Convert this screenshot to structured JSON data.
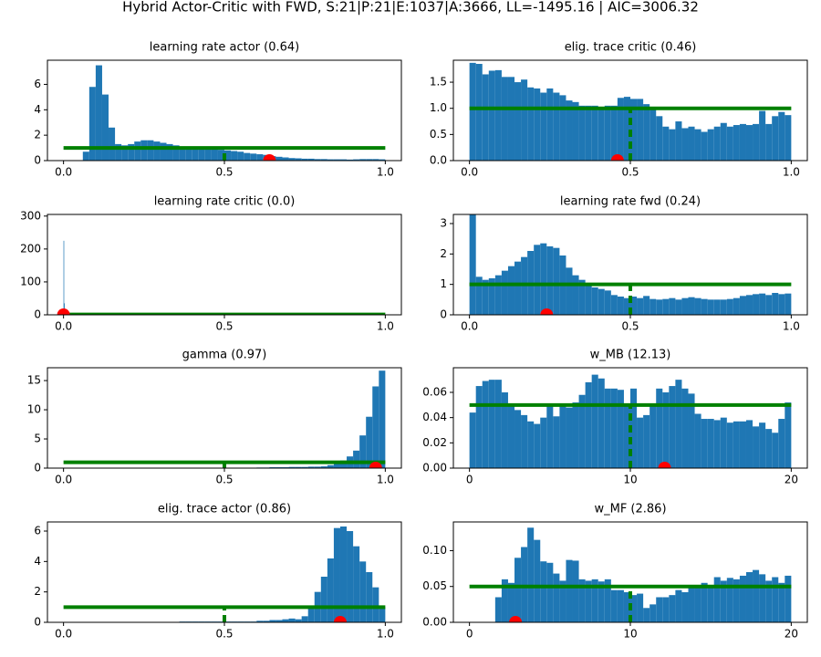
{
  "title": "Hybrid Actor-Critic with FWD, S:21|P:21|E:1037|A:3666, LL=-1495.16 | AIC=3006.32",
  "chart_data": [
    {
      "type": "histogram",
      "title": "learning rate actor (0.64)",
      "color": "#1f77b4",
      "line_color": "#008000",
      "marker_color": "#ff0000",
      "bins": [
        0,
        0.02,
        0.04,
        0.06,
        0.08,
        0.1,
        0.12,
        0.14,
        0.16,
        0.18,
        0.2,
        0.22,
        0.24,
        0.26,
        0.28,
        0.3,
        0.32,
        0.34,
        0.36,
        0.38,
        0.4,
        0.42,
        0.44,
        0.46,
        0.48,
        0.5,
        0.52,
        0.54,
        0.56,
        0.58,
        0.6,
        0.62,
        0.64,
        0.66,
        0.68,
        0.7,
        0.72,
        0.74,
        0.76,
        0.78,
        0.8,
        0.82,
        0.84,
        0.86,
        0.88,
        0.9,
        0.92,
        0.94,
        0.96,
        0.98,
        1
      ],
      "values": [
        0,
        0,
        0,
        0.7,
        5.8,
        7.5,
        5.2,
        2.6,
        1.3,
        1.2,
        1.3,
        1.5,
        1.6,
        1.6,
        1.5,
        1.4,
        1.3,
        1.2,
        1.1,
        1.0,
        1.0,
        0.95,
        0.9,
        0.9,
        0.85,
        0.8,
        0.75,
        0.7,
        0.6,
        0.55,
        0.5,
        0.45,
        0.35,
        0.3,
        0.25,
        0.2,
        0.18,
        0.15,
        0.15,
        0.12,
        0.12,
        0.1,
        0.1,
        0.1,
        0.08,
        0.1,
        0.12,
        0.12,
        0.12,
        0.1
      ],
      "hline": 1,
      "vline": 0.5,
      "marker": 0.64,
      "xlim": [
        -0.05,
        1.05
      ],
      "ylim": [
        0,
        7.9
      ],
      "xticks": [
        {
          "value": 0,
          "label": "0.0"
        },
        {
          "value": 0.5,
          "label": "0.5"
        },
        {
          "value": 1,
          "label": "1.0"
        }
      ],
      "yticks": [
        0,
        2,
        4,
        6
      ]
    },
    {
      "type": "histogram",
      "title": "elig. trace critic (0.46)",
      "color": "#1f77b4",
      "line_color": "#008000",
      "marker_color": "#ff0000",
      "bins": [
        0,
        0.02,
        0.04,
        0.06,
        0.08,
        0.1,
        0.12,
        0.14,
        0.16,
        0.18,
        0.2,
        0.22,
        0.24,
        0.26,
        0.28,
        0.3,
        0.32,
        0.34,
        0.36,
        0.38,
        0.4,
        0.42,
        0.44,
        0.46,
        0.48,
        0.5,
        0.52,
        0.54,
        0.56,
        0.58,
        0.6,
        0.62,
        0.64,
        0.66,
        0.68,
        0.7,
        0.72,
        0.74,
        0.76,
        0.78,
        0.8,
        0.82,
        0.84,
        0.86,
        0.88,
        0.9,
        0.92,
        0.94,
        0.96,
        0.98,
        1
      ],
      "values": [
        1.87,
        1.85,
        1.65,
        1.72,
        1.73,
        1.6,
        1.6,
        1.5,
        1.55,
        1.4,
        1.38,
        1.3,
        1.38,
        1.3,
        1.25,
        1.15,
        1.12,
        1.05,
        1.05,
        1.05,
        1.0,
        1.05,
        1.05,
        1.2,
        1.22,
        1.18,
        1.18,
        1.08,
        1.0,
        0.85,
        0.65,
        0.6,
        0.75,
        0.62,
        0.65,
        0.6,
        0.55,
        0.6,
        0.65,
        0.72,
        0.65,
        0.68,
        0.7,
        0.68,
        0.7,
        0.95,
        0.7,
        0.85,
        0.93,
        0.87
      ],
      "hline": 1,
      "vline": 0.5,
      "marker": 0.46,
      "xlim": [
        -0.05,
        1.05
      ],
      "ylim": [
        0,
        1.92
      ],
      "xticks": [
        {
          "value": 0,
          "label": "0.0"
        },
        {
          "value": 0.5,
          "label": "0.5"
        },
        {
          "value": 1,
          "label": "1.0"
        }
      ],
      "yticks": [
        {
          "value": 0,
          "label": "0.0"
        },
        {
          "value": 0.5,
          "label": "0.5"
        },
        {
          "value": 1,
          "label": "1.0"
        },
        {
          "value": 1.5,
          "label": "1.5"
        }
      ]
    },
    {
      "type": "histogram",
      "title": "learning rate critic (0.0)",
      "color": "#1f77b4",
      "line_color": "#008000",
      "marker_color": "#ff0000",
      "bins": [
        0,
        0.002,
        0.004,
        0.006,
        0.008,
        0.01,
        0.2,
        0.4,
        0.6,
        0.8,
        1
      ],
      "values": [
        225,
        35,
        12,
        5,
        2,
        1,
        0.5,
        0.5,
        0.5,
        0.5
      ],
      "hline": 1,
      "vline": 0.5,
      "marker": 0.0,
      "xlim": [
        -0.05,
        1.05
      ],
      "ylim": [
        0,
        305
      ],
      "xticks": [
        {
          "value": 0,
          "label": "0.0"
        },
        {
          "value": 0.5,
          "label": "0.5"
        },
        {
          "value": 1,
          "label": "1.0"
        }
      ],
      "yticks": [
        0,
        100,
        200,
        300
      ]
    },
    {
      "type": "histogram",
      "title": "learning rate fwd (0.24)",
      "color": "#1f77b4",
      "line_color": "#008000",
      "marker_color": "#ff0000",
      "bins": [
        0,
        0.02,
        0.04,
        0.06,
        0.08,
        0.1,
        0.12,
        0.14,
        0.16,
        0.18,
        0.2,
        0.22,
        0.24,
        0.26,
        0.28,
        0.3,
        0.32,
        0.34,
        0.36,
        0.38,
        0.4,
        0.42,
        0.44,
        0.46,
        0.48,
        0.5,
        0.52,
        0.54,
        0.56,
        0.58,
        0.6,
        0.62,
        0.64,
        0.66,
        0.68,
        0.7,
        0.72,
        0.74,
        0.76,
        0.78,
        0.8,
        0.82,
        0.84,
        0.86,
        0.88,
        0.9,
        0.92,
        0.94,
        0.96,
        0.98,
        1
      ],
      "values": [
        3.3,
        1.25,
        1.15,
        1.2,
        1.3,
        1.45,
        1.6,
        1.75,
        1.9,
        2.1,
        2.3,
        2.35,
        2.25,
        2.2,
        1.95,
        1.55,
        1.3,
        1.15,
        1.0,
        0.9,
        0.85,
        0.8,
        0.65,
        0.6,
        0.55,
        0.6,
        0.55,
        0.62,
        0.52,
        0.5,
        0.52,
        0.55,
        0.5,
        0.55,
        0.58,
        0.55,
        0.52,
        0.5,
        0.5,
        0.5,
        0.52,
        0.55,
        0.62,
        0.65,
        0.68,
        0.7,
        0.65,
        0.72,
        0.68,
        0.7
      ],
      "hline": 1,
      "vline": 0.5,
      "marker": 0.24,
      "xlim": [
        -0.05,
        1.05
      ],
      "ylim": [
        0,
        3.3
      ],
      "xticks": [
        {
          "value": 0,
          "label": "0.0"
        },
        {
          "value": 0.5,
          "label": "0.5"
        },
        {
          "value": 1,
          "label": "1.0"
        }
      ],
      "yticks": [
        0,
        1,
        2,
        3
      ]
    },
    {
      "type": "histogram",
      "title": "gamma (0.97)",
      "color": "#1f77b4",
      "line_color": "#008000",
      "marker_color": "#ff0000",
      "bins": [
        0,
        0.02,
        0.04,
        0.06,
        0.08,
        0.1,
        0.12,
        0.14,
        0.16,
        0.18,
        0.2,
        0.22,
        0.24,
        0.26,
        0.28,
        0.3,
        0.32,
        0.34,
        0.36,
        0.38,
        0.4,
        0.42,
        0.44,
        0.46,
        0.48,
        0.5,
        0.52,
        0.54,
        0.56,
        0.58,
        0.6,
        0.62,
        0.64,
        0.66,
        0.68,
        0.7,
        0.72,
        0.74,
        0.76,
        0.78,
        0.8,
        0.82,
        0.84,
        0.86,
        0.88,
        0.9,
        0.92,
        0.94,
        0.96,
        0.98,
        1
      ],
      "values": [
        0,
        0,
        0,
        0,
        0,
        0,
        0.05,
        0,
        0,
        0.05,
        0,
        0,
        0,
        0,
        0,
        0,
        0,
        0,
        0.05,
        0,
        0.05,
        0.05,
        0,
        0.05,
        0.05,
        0.05,
        0.05,
        0.05,
        0.05,
        0.05,
        0.1,
        0.1,
        0.15,
        0.15,
        0.15,
        0.2,
        0.2,
        0.2,
        0.25,
        0.25,
        0.3,
        0.5,
        0.8,
        1.3,
        2.0,
        3.0,
        5.6,
        8.8,
        14.0,
        16.7
      ],
      "hline": 1,
      "vline": 0.5,
      "marker": 0.97,
      "xlim": [
        -0.05,
        1.05
      ],
      "ylim": [
        0,
        17.2
      ],
      "xticks": [
        {
          "value": 0,
          "label": "0.0"
        },
        {
          "value": 0.5,
          "label": "0.5"
        },
        {
          "value": 1,
          "label": "1.0"
        }
      ],
      "yticks": [
        0,
        5,
        10,
        15
      ]
    },
    {
      "type": "histogram",
      "title": "w_MB (12.13)",
      "color": "#1f77b4",
      "line_color": "#008000",
      "marker_color": "#ff0000",
      "bins": [
        0,
        0.4,
        0.8,
        1.2,
        1.6,
        2,
        2.4,
        2.8,
        3.2,
        3.6,
        4,
        4.4,
        4.8,
        5.2,
        5.6,
        6,
        6.4,
        6.8,
        7.2,
        7.6,
        8,
        8.4,
        8.8,
        9.2,
        9.6,
        10,
        10.4,
        10.8,
        11.2,
        11.6,
        12,
        12.4,
        12.8,
        13.2,
        13.6,
        14,
        14.4,
        14.8,
        15.2,
        15.6,
        16,
        16.4,
        16.8,
        17.2,
        17.6,
        18,
        18.4,
        18.8,
        19.2,
        19.6,
        20
      ],
      "values": [
        0.044,
        0.065,
        0.069,
        0.07,
        0.07,
        0.06,
        0.05,
        0.046,
        0.042,
        0.037,
        0.035,
        0.04,
        0.05,
        0.041,
        0.049,
        0.048,
        0.052,
        0.058,
        0.068,
        0.074,
        0.071,
        0.063,
        0.063,
        0.062,
        0.05,
        0.063,
        0.04,
        0.042,
        0.05,
        0.063,
        0.06,
        0.065,
        0.07,
        0.063,
        0.059,
        0.043,
        0.039,
        0.039,
        0.038,
        0.04,
        0.036,
        0.037,
        0.037,
        0.038,
        0.033,
        0.036,
        0.031,
        0.028,
        0.039,
        0.052
      ],
      "hline": 0.05,
      "vline": 10,
      "marker": 12.13,
      "xlim": [
        -1,
        21
      ],
      "ylim": [
        0,
        0.0795
      ],
      "xticks": [
        0,
        10,
        20
      ],
      "yticks": [
        {
          "value": 0,
          "label": "0.00"
        },
        {
          "value": 0.02,
          "label": "0.02"
        },
        {
          "value": 0.04,
          "label": "0.04"
        },
        {
          "value": 0.06,
          "label": "0.06"
        }
      ]
    },
    {
      "type": "histogram",
      "title": "elig. trace actor (0.86)",
      "color": "#1f77b4",
      "line_color": "#008000",
      "marker_color": "#ff0000",
      "bins": [
        0,
        0.02,
        0.04,
        0.06,
        0.08,
        0.1,
        0.12,
        0.14,
        0.16,
        0.18,
        0.2,
        0.22,
        0.24,
        0.26,
        0.28,
        0.3,
        0.32,
        0.34,
        0.36,
        0.38,
        0.4,
        0.42,
        0.44,
        0.46,
        0.48,
        0.5,
        0.52,
        0.54,
        0.56,
        0.58,
        0.6,
        0.62,
        0.64,
        0.66,
        0.68,
        0.7,
        0.72,
        0.74,
        0.76,
        0.78,
        0.8,
        0.82,
        0.84,
        0.86,
        0.88,
        0.9,
        0.92,
        0.94,
        0.96,
        0.98,
        1
      ],
      "values": [
        0,
        0,
        0,
        0,
        0,
        0,
        0,
        0,
        0,
        0,
        0,
        0,
        0,
        0,
        0,
        0,
        0,
        0,
        0.05,
        0.05,
        0.05,
        0.05,
        0.05,
        0.05,
        0.05,
        0.05,
        0.05,
        0.05,
        0.05,
        0.05,
        0.1,
        0.1,
        0.15,
        0.15,
        0.2,
        0.25,
        0.2,
        0.4,
        1.0,
        2.0,
        3.0,
        4.2,
        6.2,
        6.3,
        6.0,
        5.0,
        4.0,
        3.3,
        2.3,
        1.0
      ],
      "hline": 1,
      "vline": 0.5,
      "marker": 0.86,
      "xlim": [
        -0.05,
        1.05
      ],
      "ylim": [
        0,
        6.6
      ],
      "xticks": [
        {
          "value": 0,
          "label": "0.0"
        },
        {
          "value": 0.5,
          "label": "0.5"
        },
        {
          "value": 1,
          "label": "1.0"
        }
      ],
      "yticks": [
        0,
        2,
        4,
        6
      ]
    },
    {
      "type": "histogram",
      "title": "w_MF (2.86)",
      "color": "#1f77b4",
      "line_color": "#008000",
      "marker_color": "#ff0000",
      "bins": [
        0,
        0.4,
        0.8,
        1.2,
        1.6,
        2,
        2.4,
        2.8,
        3.2,
        3.6,
        4,
        4.4,
        4.8,
        5.2,
        5.6,
        6,
        6.4,
        6.8,
        7.2,
        7.6,
        8,
        8.4,
        8.8,
        9.2,
        9.6,
        10,
        10.4,
        10.8,
        11.2,
        11.6,
        12,
        12.4,
        12.8,
        13.2,
        13.6,
        14,
        14.4,
        14.8,
        15.2,
        15.6,
        16,
        16.4,
        16.8,
        17.2,
        17.6,
        18,
        18.4,
        18.8,
        19.2,
        19.6,
        20
      ],
      "values": [
        0,
        0,
        0,
        0,
        0.035,
        0.06,
        0.055,
        0.09,
        0.105,
        0.132,
        0.115,
        0.085,
        0.083,
        0.068,
        0.058,
        0.087,
        0.086,
        0.06,
        0.058,
        0.06,
        0.057,
        0.06,
        0.045,
        0.045,
        0.042,
        0.038,
        0.04,
        0.02,
        0.025,
        0.035,
        0.035,
        0.038,
        0.045,
        0.042,
        0.05,
        0.048,
        0.055,
        0.05,
        0.063,
        0.058,
        0.062,
        0.06,
        0.065,
        0.07,
        0.073,
        0.067,
        0.058,
        0.063,
        0.055,
        0.065
      ],
      "hline": 0.05,
      "vline": 10,
      "marker": 2.86,
      "xlim": [
        -1,
        21
      ],
      "ylim": [
        0,
        0.14
      ],
      "xticks": [
        0,
        10,
        20
      ],
      "yticks": [
        {
          "value": 0,
          "label": "0.00"
        },
        {
          "value": 0.05,
          "label": "0.05"
        },
        {
          "value": 0.1,
          "label": "0.10"
        }
      ]
    }
  ]
}
